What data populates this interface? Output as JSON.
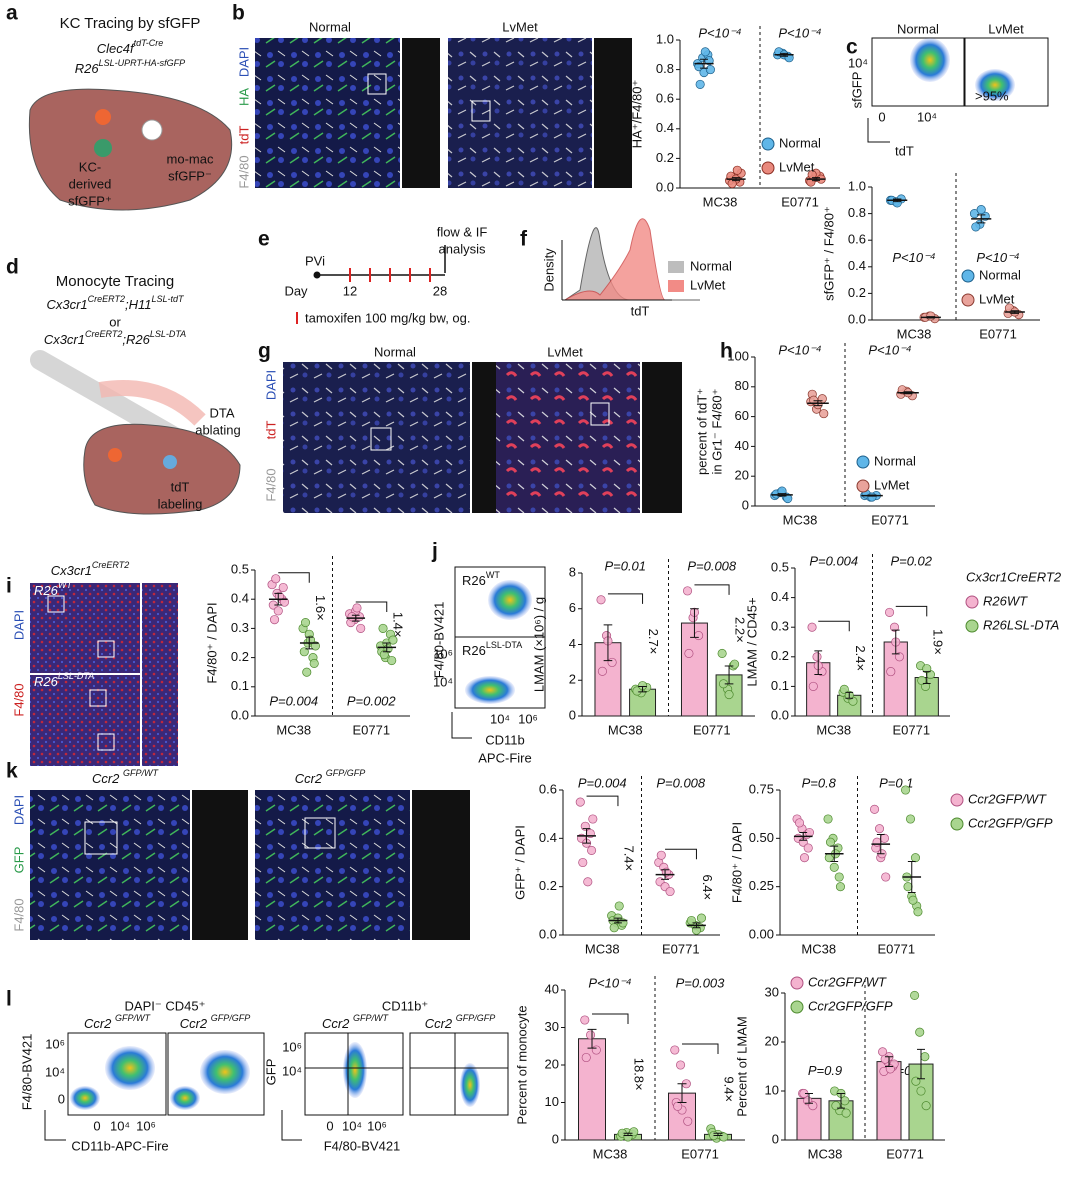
{
  "chart_data": [
    {
      "type": "strip",
      "ylabel": "HA⁺/F4/80⁺",
      "categories": [
        "MC38",
        "E0771"
      ],
      "ylim": [
        0,
        1
      ],
      "yticks": [
        {
          "value": 0,
          "label": "0.0"
        },
        0.2,
        0.4,
        0.6,
        0.8,
        {
          "value": 1,
          "label": "1.0"
        }
      ],
      "divider": true,
      "legend": "lower right",
      "p_values": [
        "P<10⁻⁴",
        "P<10⁻⁴"
      ],
      "series": [
        {
          "name": "Normal",
          "color": "#5fb6e8",
          "values": [
            [
              0.84,
              0.88,
              0.9,
              0.82,
              0.78,
              0.86,
              0.7,
              0.92,
              0.8
            ],
            [
              0.9,
              0.91,
              0.89,
              0.92,
              0.9,
              0.88
            ]
          ],
          "means": [
            0.84,
            0.9
          ],
          "errors": [
            0.03,
            0.01
          ]
        },
        {
          "name": "LvMet",
          "color": "#e9897d",
          "values": [
            [
              0.05,
              0.07,
              0.04,
              0.08,
              0.06,
              0.1,
              0.03,
              0.12
            ],
            [
              0.05,
              0.07,
              0.08,
              0.04,
              0.1,
              0.06,
              0.09
            ]
          ],
          "means": [
            0.06,
            0.06
          ],
          "errors": [
            0.01,
            0.01
          ]
        }
      ]
    },
    {
      "type": "strip",
      "ylabel": "sfGFP⁺ / F4/80⁺",
      "categories": [
        "MC38",
        "E0771"
      ],
      "ylim": [
        0,
        1
      ],
      "yticks": [
        {
          "value": 0,
          "label": "0.0"
        },
        0.2,
        0.4,
        0.6,
        0.8,
        {
          "value": 1,
          "label": "1.0"
        }
      ],
      "divider": true,
      "legend": "lower right",
      "p_values": [
        "P<10⁻⁴",
        "P<10⁻⁴"
      ],
      "p_position": "middle",
      "series": [
        {
          "name": "Normal",
          "color": "#5fb6e8",
          "values": [
            [
              0.9,
              0.89,
              0.91,
              0.9,
              0.88
            ],
            [
              0.8,
              0.72,
              0.78,
              0.7,
              0.83
            ]
          ],
          "means": [
            0.9,
            0.76
          ],
          "errors": [
            0.01,
            0.03
          ]
        },
        {
          "name": "LvMet",
          "color": "#e9a39b",
          "values": [
            [
              0.02,
              0.03,
              0.01,
              0.02,
              0.03
            ],
            [
              0.05,
              0.07,
              0.04,
              0.09,
              0.06
            ]
          ],
          "means": [
            0.02,
            0.06
          ],
          "errors": [
            0.005,
            0.01
          ]
        }
      ]
    },
    {
      "type": "strip",
      "ylabel": [
        "percent of tdT⁺",
        "in Gr1⁻ F4/80⁺"
      ],
      "categories": [
        "MC38",
        "E0771"
      ],
      "ylim": [
        0,
        100
      ],
      "yticks": [
        0,
        20,
        40,
        60,
        80,
        100
      ],
      "divider": true,
      "legend": "lower right",
      "p_values": [
        "P<10⁻⁴",
        "P<10⁻⁴"
      ],
      "series": [
        {
          "name": "Normal",
          "color": "#5fb6e8",
          "values": [
            [
              7,
              9,
              6,
              8,
              10,
              5
            ],
            [
              7,
              6,
              7,
              8,
              6
            ]
          ],
          "means": [
            7.5,
            7
          ],
          "errors": [
            0.8,
            0.4
          ]
        },
        {
          "name": "LvMet",
          "color": "#e9a39b",
          "values": [
            [
              70,
              65,
              72,
              75,
              68,
              62,
              71
            ],
            [
              75,
              77,
              74,
              78,
              76
            ]
          ],
          "means": [
            69,
            76
          ],
          "errors": [
            1.6,
            0.7
          ]
        }
      ]
    },
    {
      "type": "strip",
      "ylabel": "F4/80⁺ / DAPI",
      "categories": [
        "MC38",
        "E0771"
      ],
      "ylim": [
        0,
        0.5
      ],
      "yticks": [
        {
          "value": 0,
          "label": "0.0"
        },
        0.1,
        0.2,
        0.3,
        0.4,
        0.5
      ],
      "divider": true,
      "p_values": [
        "P=0.004",
        "P=0.002"
      ],
      "p_position": "bottom",
      "fold_changes": [
        "1.6×",
        "1.4×"
      ],
      "series": [
        {
          "name": "R26WT",
          "color": "#f4b3cf",
          "values": [
            [
              0.45,
              0.42,
              0.4,
              0.38,
              0.36,
              0.44,
              0.33,
              0.41,
              0.39,
              0.47
            ],
            [
              0.35,
              0.33,
              0.34,
              0.32,
              0.36,
              0.3,
              0.34,
              0.37
            ]
          ],
          "means": [
            0.4,
            0.335
          ],
          "errors": [
            0.02,
            0.01
          ]
        },
        {
          "name": "R26LSL-DTA",
          "color": "#a9d58f",
          "values": [
            [
              0.3,
              0.25,
              0.2,
              0.22,
              0.28,
              0.18,
              0.32,
              0.26,
              0.24,
              0.15
            ],
            [
              0.24,
              0.2,
              0.28,
              0.22,
              0.25,
              0.19,
              0.3,
              0.23,
              0.26,
              0.21
            ]
          ],
          "means": [
            0.25,
            0.235
          ],
          "errors": [
            0.02,
            0.015
          ]
        }
      ]
    },
    {
      "type": "bar",
      "ylabel": "LMAM (×10⁶) / g",
      "categories": [
        "MC38",
        "E0771"
      ],
      "ylim": [
        0,
        8
      ],
      "yticks": [
        0,
        2,
        4,
        6,
        8
      ],
      "divider": true,
      "p_values": [
        "P=0.01",
        "P=0.008"
      ],
      "fold_changes": [
        "2.7×",
        "2.2×"
      ],
      "series": [
        {
          "name": "R26WT",
          "color": "#f4b3cf",
          "values": [
            [
              6.5,
              4.5,
              3,
              2.5,
              4.2
            ],
            [
              7,
              5.5,
              4.5,
              3.5,
              5.8
            ]
          ],
          "means": [
            4.1,
            5.2
          ],
          "errors": [
            1,
            0.8
          ]
        },
        {
          "name": "R26LSL-DTA",
          "color": "#a9d58f",
          "values": [
            [
              1.5,
              1.3,
              1.6,
              1.4,
              1.7
            ],
            [
              3.5,
              1.5,
              2.8,
              1.8,
              1.2,
              2.9
            ]
          ],
          "means": [
            1.5,
            2.3
          ],
          "errors": [
            0.15,
            0.5
          ]
        }
      ]
    },
    {
      "type": "bar",
      "ylabel": "LMAM / CD45+",
      "categories": [
        "MC38",
        "E0771"
      ],
      "ylim": [
        0,
        0.5
      ],
      "yticks": [
        {
          "value": 0,
          "label": "0.0"
        },
        0.1,
        0.2,
        0.3,
        0.4,
        0.5
      ],
      "divider": true,
      "p_values": [
        "P=0.004",
        "P=0.02"
      ],
      "fold_changes": [
        "2.4×",
        "1.9×"
      ],
      "legend": "right",
      "legend_title": "Cx3cr1CreERT2",
      "series": [
        {
          "name": "R26WT",
          "color": "#f4b3cf",
          "values": [
            [
              0.3,
              0.2,
              0.15,
              0.1,
              0.17
            ],
            [
              0.35,
              0.3,
              0.2,
              0.15,
              0.25
            ]
          ],
          "means": [
            0.18,
            0.25
          ],
          "errors": [
            0.04,
            0.04
          ]
        },
        {
          "name": "R26LSL-DTA",
          "color": "#a9d58f",
          "values": [
            [
              0.08,
              0.06,
              0.05,
              0.09,
              0.07
            ],
            [
              0.17,
              0.1,
              0.14,
              0.12,
              0.16
            ]
          ],
          "means": [
            0.07,
            0.13
          ],
          "errors": [
            0.01,
            0.02
          ]
        }
      ]
    },
    {
      "type": "strip",
      "ylabel": "GFP⁺ / DAPI",
      "categories": [
        "MC38",
        "E0771"
      ],
      "ylim": [
        0,
        0.6
      ],
      "yticks": [
        {
          "value": 0,
          "label": "0.0"
        },
        0.2,
        0.4,
        0.6
      ],
      "divider": true,
      "p_values": [
        "P=0.004",
        "P=0.008"
      ],
      "fold_changes": [
        "7.4×",
        "6.4×"
      ],
      "series": [
        {
          "name": "Ccr2GFP/WT",
          "color": "#f4b3cf",
          "values": [
            [
              0.55,
              0.45,
              0.42,
              0.4,
              0.38,
              0.35,
              0.3,
              0.22,
              0.48
            ],
            [
              0.3,
              0.28,
              0.25,
              0.22,
              0.2,
              0.18,
              0.33,
              0.26
            ]
          ],
          "means": [
            0.41,
            0.25
          ],
          "errors": [
            0.03,
            0.02
          ]
        },
        {
          "name": "Ccr2GFP/GFP",
          "color": "#a9d58f",
          "values": [
            [
              0.08,
              0.05,
              0.04,
              0.06,
              0.07,
              0.05,
              0.03,
              0.12
            ],
            [
              0.05,
              0.04,
              0.03,
              0.06,
              0.02,
              0.07
            ]
          ],
          "means": [
            0.06,
            0.04
          ],
          "errors": [
            0.01,
            0.01
          ]
        }
      ]
    },
    {
      "type": "strip",
      "ylabel": "F4/80⁺ / DAPI",
      "categories": [
        "MC38",
        "E0771"
      ],
      "ylim": [
        0,
        0.75
      ],
      "yticks": [
        {
          "value": 0,
          "label": "0.00"
        },
        0.25,
        {
          "value": 0.5,
          "label": "0.50"
        },
        0.75
      ],
      "divider": true,
      "p_values": [
        "P=0.8",
        "P=0.1"
      ],
      "legend": "right",
      "series": [
        {
          "name": "Ccr2GFP/WT",
          "color": "#f4b3cf",
          "values": [
            [
              0.6,
              0.55,
              0.52,
              0.5,
              0.48,
              0.45,
              0.58,
              0.4,
              0.53
            ],
            [
              0.65,
              0.55,
              0.5,
              0.45,
              0.4,
              0.3,
              0.48,
              0.42
            ]
          ],
          "means": [
            0.51,
            0.47
          ],
          "errors": [
            0.02,
            0.05
          ]
        },
        {
          "name": "Ccr2GFP/GFP",
          "color": "#a9d58f",
          "values": [
            [
              0.6,
              0.5,
              0.45,
              0.4,
              0.35,
              0.3,
              0.48,
              0.42,
              0.25
            ],
            [
              0.75,
              0.6,
              0.4,
              0.3,
              0.2,
              0.15,
              0.25,
              0.18,
              0.12
            ]
          ],
          "means": [
            0.42,
            0.3
          ],
          "errors": [
            0.04,
            0.08
          ]
        }
      ]
    },
    {
      "type": "bar",
      "ylabel": "Percent of monocyte",
      "categories": [
        "MC38",
        "E0771"
      ],
      "ylim": [
        0,
        40
      ],
      "yticks": [
        0,
        10,
        20,
        30,
        40
      ],
      "divider": true,
      "p_values": [
        "P<10⁻⁴",
        "P=0.003"
      ],
      "fold_changes": [
        "18.8×",
        "9.4×"
      ],
      "series": [
        {
          "name": "Ccr2GFP/WT",
          "color": "#f4b3cf",
          "values": [
            [
              32,
              28,
              24,
              22
            ],
            [
              24,
              20,
              15,
              10,
              8,
              5,
              9
            ]
          ],
          "means": [
            27,
            12.5
          ],
          "errors": [
            2.5,
            2.5
          ]
        },
        {
          "name": "Ccr2GFP/GFP",
          "color": "#a9d58f",
          "values": [
            [
              1,
              2,
              1.5,
              1.8,
              0.8,
              2.2
            ],
            [
              3,
              0.5,
              1,
              2,
              1.5,
              0.8,
              1.2
            ]
          ],
          "means": [
            1.5,
            1.5
          ],
          "errors": [
            0.3,
            0.3
          ]
        }
      ]
    },
    {
      "type": "bar",
      "ylabel": "Percent of LMAM",
      "categories": [
        "MC38",
        "E0771"
      ],
      "ylim": [
        0,
        30
      ],
      "yticks": [
        0,
        10,
        20,
        30
      ],
      "divider": true,
      "p_values": [
        "P=0.9",
        "P=0.9"
      ],
      "p_position": "middle",
      "legend": "upper left",
      "series": [
        {
          "name": "Ccr2GFP/WT",
          "color": "#f4b3cf",
          "values": [
            [
              9.5,
              8,
              7,
              9.5
            ],
            [
              18,
              16,
              15,
              14,
              17,
              15.5,
              16.5,
              14.5
            ]
          ],
          "means": [
            8.5,
            16
          ],
          "errors": [
            1,
            1
          ]
        },
        {
          "name": "Ccr2GFP/GFP",
          "color": "#a9d58f",
          "values": [
            [
              10,
              6,
              8,
              7,
              9.5,
              5.5
            ],
            [
              29.5,
              22,
              17,
              12,
              10,
              7
            ]
          ],
          "means": [
            8,
            15.5
          ],
          "errors": [
            1.5,
            3
          ]
        }
      ]
    }
  ],
  "figure": {
    "panels": [
      "a",
      "b",
      "c",
      "d",
      "e",
      "f",
      "g",
      "h",
      "i",
      "j",
      "k",
      "l"
    ],
    "a": {
      "title": "KC Tracing by sfGFP",
      "genotype_1": [
        "Clec4f",
        "tdT-Cre"
      ],
      "genotype_2": [
        "R26",
        "LSL-UPRT-HA-sfGFP"
      ],
      "momac": [
        "mo-mac",
        "sfGFP⁻"
      ],
      "kc": [
        "KC-",
        "derived",
        "sfGFP⁺"
      ]
    },
    "b": {
      "conditions": [
        "Normal",
        "LvMet"
      ],
      "channels": [
        "DAPI",
        "HA",
        "tdT",
        "F4/80"
      ]
    },
    "c": {
      "conditions": [
        "Normal",
        "LvMet"
      ],
      "ylabel": "sfGFP",
      "xlabel": "tdT",
      "ytick": "10⁴",
      "xticks": [
        "0",
        "10⁴"
      ],
      "gate": ">95%"
    },
    "d": {
      "title": "Monocyte Tracing",
      "genotype_1": [
        "Cx3cr1",
        "CreERT2",
        ";H11",
        "LSL-tdT"
      ],
      "or": "or",
      "genotype_2": [
        "Cx3cr1",
        "CreERT2",
        ";R26",
        "LSL-DTA"
      ],
      "dta": [
        "DTA",
        "ablating"
      ],
      "tdt": [
        "tdT",
        "labeling"
      ]
    },
    "e": {
      "start": "PVi",
      "day": "Day",
      "days": [
        "12",
        "28"
      ],
      "analysis": [
        "flow & IF",
        "analysis"
      ],
      "tamoxifen": "tamoxifen 100 mg/kg bw, og."
    },
    "f": {
      "ylabel": "Density",
      "xlabel": "tdT",
      "legend": [
        "Normal",
        "LvMet"
      ]
    },
    "g": {
      "conditions": [
        "Normal",
        "LvMet"
      ],
      "channels": [
        "DAPI",
        "tdT",
        "F4/80"
      ]
    },
    "i": {
      "genotype": [
        "Cx3cr1",
        "CreERT2"
      ],
      "top": [
        "R26",
        "WT"
      ],
      "bottom": [
        "R26",
        "LSL-DTA"
      ],
      "channels": [
        "DAPI",
        "F4/80"
      ]
    },
    "j": {
      "top": [
        "R26",
        "WT"
      ],
      "bottom": [
        "R26",
        "LSL-DTA"
      ],
      "ylabel": "F4/80-BV421",
      "yticks": [
        "10⁶",
        "10⁴"
      ],
      "xticks": [
        "10⁴",
        "10⁶"
      ],
      "xlabel": [
        "CD11b",
        "APC-Fire"
      ]
    },
    "k": {
      "conditions": [
        [
          "Ccr2 ",
          "GFP/WT"
        ],
        [
          "Ccr2 ",
          "GFP/GFP"
        ]
      ],
      "channels": [
        "DAPI",
        "GFP",
        "F4/80"
      ]
    },
    "l": {
      "title_1": "DAPI⁻ CD45⁺",
      "title_2": "CD11b⁺",
      "conditions": [
        [
          "Ccr2 ",
          "GFP/WT"
        ],
        [
          "Ccr2 ",
          "GFP/GFP"
        ]
      ],
      "ylabel_1": "F4/80-BV421",
      "ylabel_2": "GFP",
      "yticks_1": [
        "10⁶",
        "10⁴",
        "0"
      ],
      "yticks_2": [
        "10⁶",
        "10⁴"
      ],
      "xticks": [
        "0",
        "10⁴",
        "10⁶"
      ],
      "xlabel_1": "CD11b-APC-Fire",
      "xlabel_2": "F4/80-BV421"
    }
  }
}
